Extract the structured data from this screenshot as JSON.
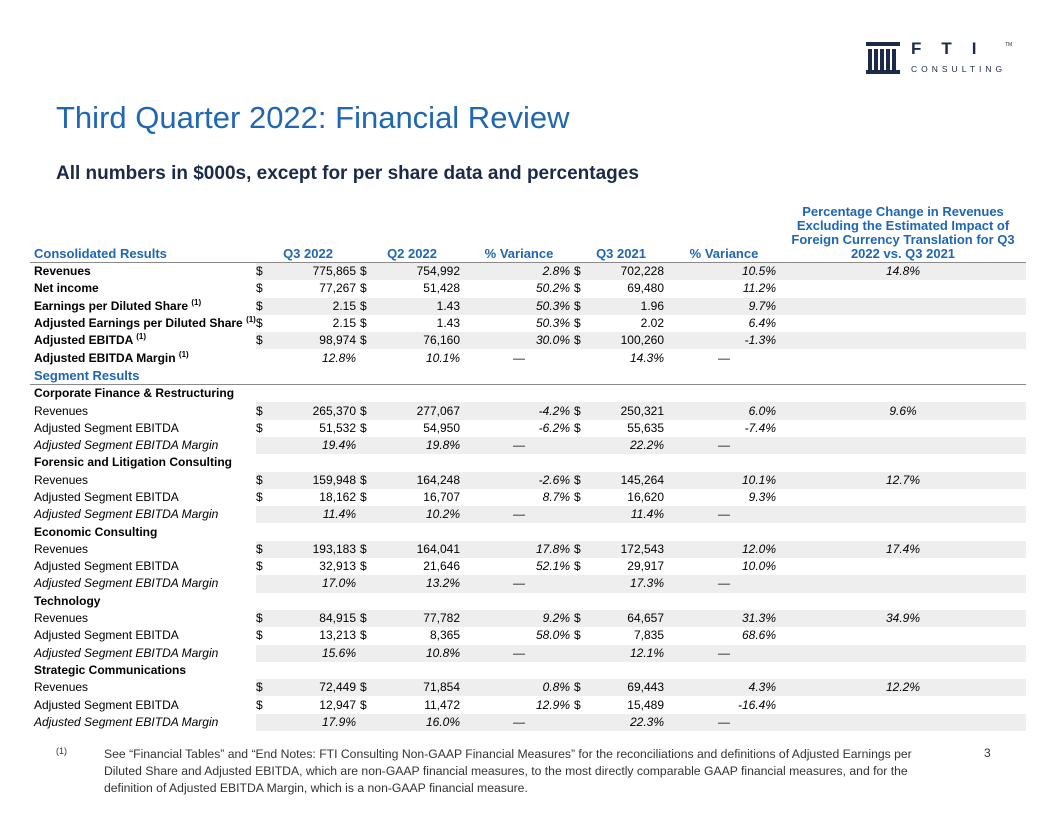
{
  "logo": {
    "word": "FTI",
    "tm": "TM",
    "sub": "CONSULTING"
  },
  "title": "Third Quarter 2022: Financial Review",
  "subtitle": "All numbers in $000s, except for per share data and percentages",
  "table": {
    "headers": {
      "label": "Consolidated Results",
      "q3_2022": "Q3 2022",
      "q2_2022": "Q2 2022",
      "var1": "% Variance",
      "q3_2021": "Q3 2021",
      "var2": "% Variance",
      "pct_change": "Percentage Change in Revenues Excluding the Estimated Impact of Foreign Currency Translation for Q3 2022 vs. Q3 2021"
    },
    "consolidated": [
      {
        "label": "Revenues",
        "d1": "$",
        "q3_2022": "775,865",
        "d2": "$",
        "q2_2022": "754,992",
        "var1": "2.8%",
        "d3": "$",
        "q3_2021": "702,228",
        "var2": "10.5%",
        "pct": "14.8%"
      },
      {
        "label": "Net income",
        "d1": "$",
        "q3_2022": "77,267",
        "d2": "$",
        "q2_2022": "51,428",
        "var1": "50.2%",
        "d3": "$",
        "q3_2021": "69,480",
        "var2": "11.2%",
        "pct": ""
      },
      {
        "label": "Earnings per Diluted Share",
        "sup": "(1)",
        "d1": "$",
        "q3_2022": "2.15",
        "d2": "$",
        "q2_2022": "1.43",
        "var1": "50.3%",
        "d3": "$",
        "q3_2021": "1.96",
        "var2": "9.7%",
        "pct": ""
      },
      {
        "label": "Adjusted Earnings per Diluted Share",
        "sup": "(1)",
        "d1": "$",
        "q3_2022": "2.15",
        "d2": "$",
        "q2_2022": "1.43",
        "var1": "50.3%",
        "d3": "$",
        "q3_2021": "2.02",
        "var2": "6.4%",
        "pct": ""
      },
      {
        "label": "Adjusted EBITDA",
        "sup": "(1)",
        "d1": "$",
        "q3_2022": "98,974",
        "d2": "$",
        "q2_2022": "76,160",
        "var1": "30.0%",
        "d3": "$",
        "q3_2021": "100,260",
        "var2": "-1.3%",
        "pct": ""
      },
      {
        "label": "Adjusted EBITDA Margin",
        "sup": "(1)",
        "q3_2022": "12.8%",
        "q2_2022": "10.1%",
        "var1": "—",
        "q3_2021": "14.3%",
        "var2": "—",
        "pct": ""
      }
    ],
    "segment_header": "Segment Results",
    "row_labels": {
      "revenues": "Revenues",
      "ebitda": "Adjusted Segment EBITDA",
      "margin": "Adjusted Segment EBITDA Margin"
    },
    "segments": [
      {
        "name": "Corporate Finance & Restructuring",
        "revenues": {
          "d1": "$",
          "q3_2022": "265,370",
          "d2": "$",
          "q2_2022": "277,067",
          "var1": "-4.2%",
          "d3": "$",
          "q3_2021": "250,321",
          "var2": "6.0%",
          "pct": "9.6%"
        },
        "ebitda": {
          "d1": "$",
          "q3_2022": "51,532",
          "d2": "$",
          "q2_2022": "54,950",
          "var1": "-6.2%",
          "d3": "$",
          "q3_2021": "55,635",
          "var2": "-7.4%",
          "pct": ""
        },
        "margin": {
          "q3_2022": "19.4%",
          "q2_2022": "19.8%",
          "var1": "—",
          "q3_2021": "22.2%",
          "var2": "—",
          "pct": ""
        }
      },
      {
        "name": "Forensic and Litigation Consulting",
        "revenues": {
          "d1": "$",
          "q3_2022": "159,948",
          "d2": "$",
          "q2_2022": "164,248",
          "var1": "-2.6%",
          "d3": "$",
          "q3_2021": "145,264",
          "var2": "10.1%",
          "pct": "12.7%"
        },
        "ebitda": {
          "d1": "$",
          "q3_2022": "18,162",
          "d2": "$",
          "q2_2022": "16,707",
          "var1": "8.7%",
          "d3": "$",
          "q3_2021": "16,620",
          "var2": "9.3%",
          "pct": ""
        },
        "margin": {
          "q3_2022": "11.4%",
          "q2_2022": "10.2%",
          "var1": "—",
          "q3_2021": "11.4%",
          "var2": "—",
          "pct": ""
        }
      },
      {
        "name": "Economic Consulting",
        "revenues": {
          "d1": "$",
          "q3_2022": "193,183",
          "d2": "$",
          "q2_2022": "164,041",
          "var1": "17.8%",
          "d3": "$",
          "q3_2021": "172,543",
          "var2": "12.0%",
          "pct": "17.4%"
        },
        "ebitda": {
          "d1": "$",
          "q3_2022": "32,913",
          "d2": "$",
          "q2_2022": "21,646",
          "var1": "52.1%",
          "d3": "$",
          "q3_2021": "29,917",
          "var2": "10.0%",
          "pct": ""
        },
        "margin": {
          "q3_2022": "17.0%",
          "q2_2022": "13.2%",
          "var1": "—",
          "q3_2021": "17.3%",
          "var2": "—",
          "pct": ""
        }
      },
      {
        "name": "Technology",
        "revenues": {
          "d1": "$",
          "q3_2022": "84,915",
          "d2": "$",
          "q2_2022": "77,782",
          "var1": "9.2%",
          "d3": "$",
          "q3_2021": "64,657",
          "var2": "31.3%",
          "pct": "34.9%"
        },
        "ebitda": {
          "d1": "$",
          "q3_2022": "13,213",
          "d2": "$",
          "q2_2022": "8,365",
          "var1": "58.0%",
          "d3": "$",
          "q3_2021": "7,835",
          "var2": "68.6%",
          "pct": ""
        },
        "margin": {
          "q3_2022": "15.6%",
          "q2_2022": "10.8%",
          "var1": "—",
          "q3_2021": "12.1%",
          "var2": "—",
          "pct": ""
        }
      },
      {
        "name": "Strategic Communications",
        "revenues": {
          "d1": "$",
          "q3_2022": "72,449",
          "d2": "$",
          "q2_2022": "71,854",
          "var1": "0.8%",
          "d3": "$",
          "q3_2021": "69,443",
          "var2": "4.3%",
          "pct": "12.2%"
        },
        "ebitda": {
          "d1": "$",
          "q3_2022": "12,947",
          "d2": "$",
          "q2_2022": "11,472",
          "var1": "12.9%",
          "d3": "$",
          "q3_2021": "15,489",
          "var2": "-16.4%",
          "pct": ""
        },
        "margin": {
          "q3_2022": "17.9%",
          "q2_2022": "16.0%",
          "var1": "—",
          "q3_2021": "22.3%",
          "var2": "—",
          "pct": ""
        }
      }
    ]
  },
  "footnote": {
    "mark": "(1)",
    "text": "See “Financial Tables” and “End Notes: FTI Consulting Non-GAAP Financial Measures” for the reconciliations and definitions of Adjusted Earnings per Diluted Share and Adjusted EBITDA, which are non-GAAP financial measures, to the most directly comparable GAAP financial measures, and for the definition of Adjusted EBITDA Margin, which is a non-GAAP financial measure."
  },
  "page_number": "3",
  "colors": {
    "accent": "#1f66b3",
    "navy": "#1b2a4a",
    "row_shade": "#eeeeee"
  }
}
